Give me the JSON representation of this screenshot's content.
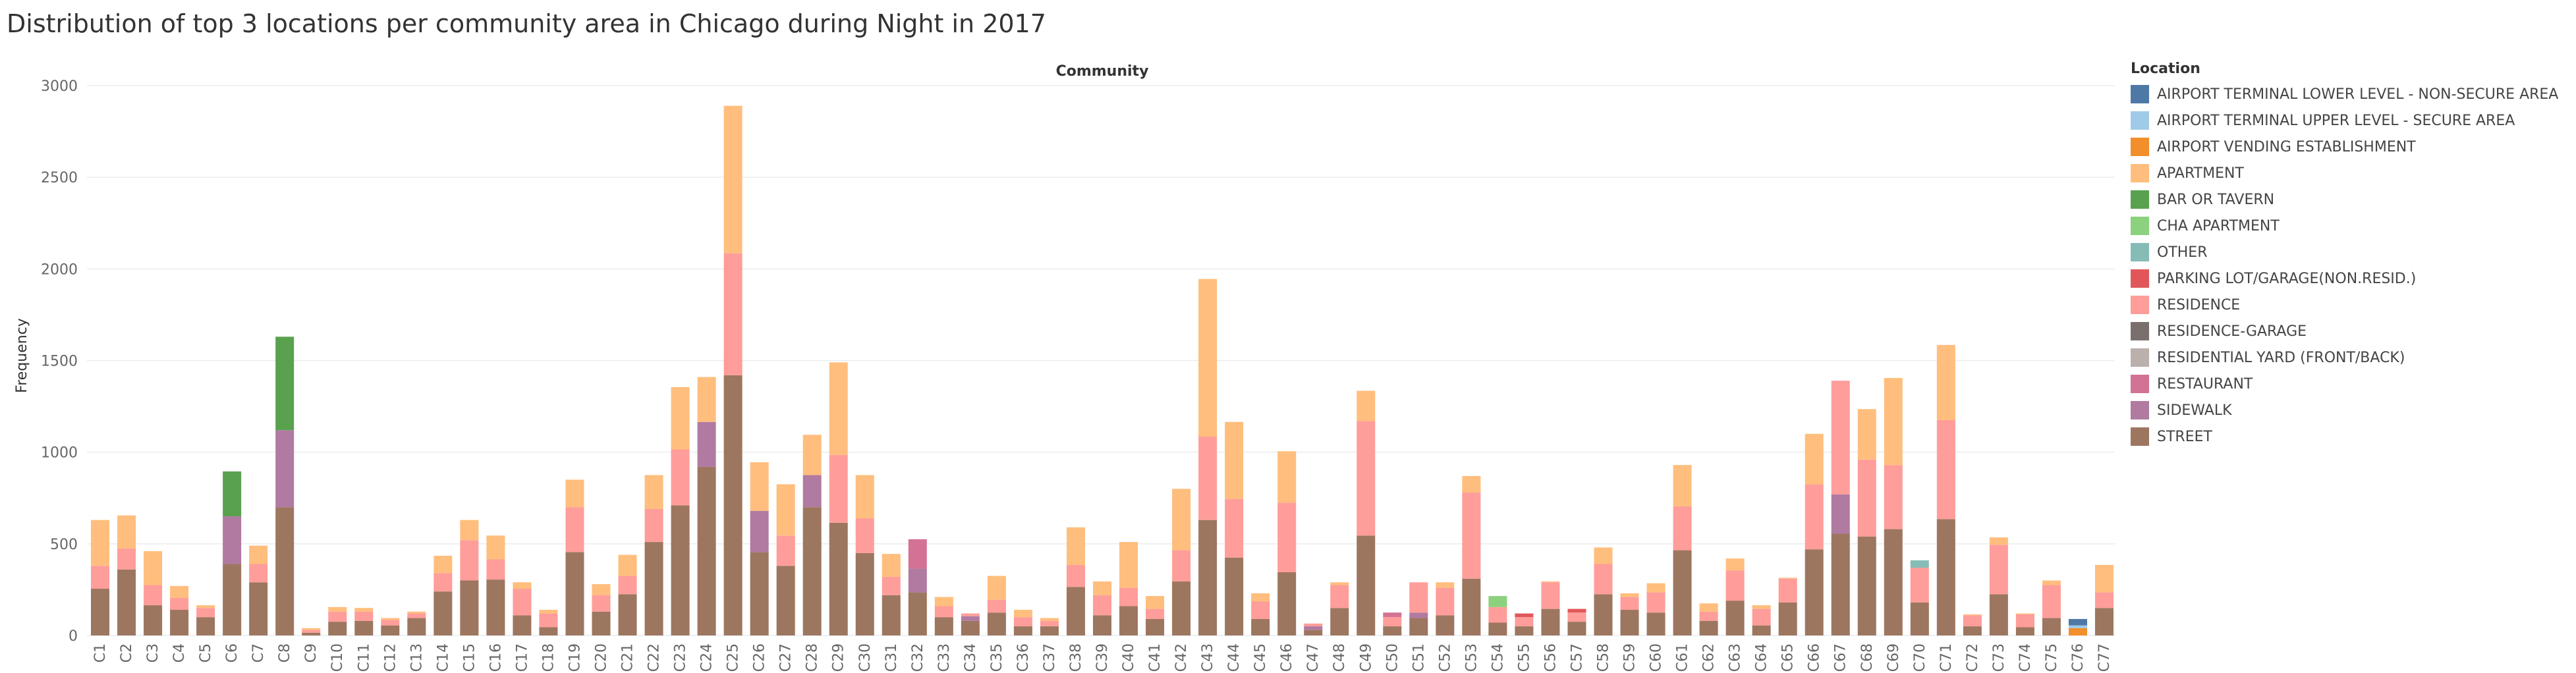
{
  "title": "Distribution of top 3 locations per community area in Chicago during Night in 2017",
  "chart_data": {
    "type": "bar",
    "stacked": true,
    "column_header": "Community",
    "xlabel": "",
    "ylabel": "Frequency",
    "ylim": [
      0,
      3000
    ],
    "yticks": [
      0,
      500,
      1000,
      1500,
      2000,
      2500,
      3000
    ],
    "grid": true,
    "legend_title": "Location",
    "legend_position": "right",
    "locations": [
      {
        "name": "AIRPORT TERMINAL LOWER LEVEL - NON-SECURE AREA",
        "color": "#4e79a7"
      },
      {
        "name": "AIRPORT TERMINAL UPPER LEVEL - SECURE AREA",
        "color": "#a0cbe8"
      },
      {
        "name": "AIRPORT VENDING ESTABLISHMENT",
        "color": "#f28e2b"
      },
      {
        "name": "APARTMENT",
        "color": "#ffbe7d"
      },
      {
        "name": "BAR OR TAVERN",
        "color": "#59a14f"
      },
      {
        "name": "CHA APARTMENT",
        "color": "#8cd17d"
      },
      {
        "name": "OTHER",
        "color": "#86bcb6"
      },
      {
        "name": "PARKING LOT/GARAGE(NON.RESID.)",
        "color": "#e15759"
      },
      {
        "name": "RESIDENCE",
        "color": "#ff9d9a"
      },
      {
        "name": "RESIDENCE-GARAGE",
        "color": "#79706e"
      },
      {
        "name": "RESIDENTIAL YARD (FRONT/BACK)",
        "color": "#bab0ac"
      },
      {
        "name": "RESTAURANT",
        "color": "#d37295"
      },
      {
        "name": "SIDEWALK",
        "color": "#b07aa1"
      },
      {
        "name": "STREET",
        "color": "#9d7660"
      }
    ],
    "categories": [
      "C1",
      "C2",
      "C3",
      "C4",
      "C5",
      "C6",
      "C7",
      "C8",
      "C9",
      "C10",
      "C11",
      "C12",
      "C13",
      "C14",
      "C15",
      "C16",
      "C17",
      "C18",
      "C19",
      "C20",
      "C21",
      "C22",
      "C23",
      "C24",
      "C25",
      "C26",
      "C27",
      "C28",
      "C29",
      "C30",
      "C31",
      "C32",
      "C33",
      "C34",
      "C35",
      "C36",
      "C37",
      "C38",
      "C39",
      "C40",
      "C41",
      "C42",
      "C43",
      "C44",
      "C45",
      "C46",
      "C47",
      "C48",
      "C49",
      "C50",
      "C51",
      "C52",
      "C53",
      "C54",
      "C55",
      "C56",
      "C57",
      "C58",
      "C59",
      "C60",
      "C61",
      "C62",
      "C63",
      "C64",
      "C65",
      "C66",
      "C67",
      "C68",
      "C69",
      "C70",
      "C71",
      "C72",
      "C73",
      "C74",
      "C75",
      "C76",
      "C77"
    ],
    "stacks": [
      [
        [
          "STREET",
          255
        ],
        [
          "RESIDENCE",
          125
        ],
        [
          "APARTMENT",
          250
        ]
      ],
      [
        [
          "STREET",
          360
        ],
        [
          "RESIDENCE",
          115
        ],
        [
          "APARTMENT",
          180
        ]
      ],
      [
        [
          "STREET",
          165
        ],
        [
          "RESIDENCE",
          110
        ],
        [
          "APARTMENT",
          185
        ]
      ],
      [
        [
          "STREET",
          140
        ],
        [
          "RESIDENCE",
          65
        ],
        [
          "APARTMENT",
          65
        ]
      ],
      [
        [
          "STREET",
          100
        ],
        [
          "RESIDENCE",
          50
        ],
        [
          "APARTMENT",
          15
        ]
      ],
      [
        [
          "STREET",
          390
        ],
        [
          "SIDEWALK",
          260
        ],
        [
          "BAR OR TAVERN",
          245
        ]
      ],
      [
        [
          "STREET",
          290
        ],
        [
          "RESIDENCE",
          100
        ],
        [
          "APARTMENT",
          100
        ]
      ],
      [
        [
          "STREET",
          700
        ],
        [
          "SIDEWALK",
          420
        ],
        [
          "BAR OR TAVERN",
          510
        ]
      ],
      [
        [
          "STREET",
          15
        ],
        [
          "RESIDENCE",
          15
        ],
        [
          "APARTMENT",
          10
        ]
      ],
      [
        [
          "STREET",
          75
        ],
        [
          "RESIDENCE",
          55
        ],
        [
          "APARTMENT",
          25
        ]
      ],
      [
        [
          "STREET",
          80
        ],
        [
          "RESIDENCE",
          50
        ],
        [
          "APARTMENT",
          20
        ]
      ],
      [
        [
          "STREET",
          55
        ],
        [
          "RESIDENCE",
          30
        ],
        [
          "APARTMENT",
          10
        ]
      ],
      [
        [
          "STREET",
          95
        ],
        [
          "RESIDENCE",
          25
        ],
        [
          "APARTMENT",
          10
        ]
      ],
      [
        [
          "STREET",
          240
        ],
        [
          "RESIDENCE",
          100
        ],
        [
          "APARTMENT",
          95
        ]
      ],
      [
        [
          "STREET",
          300
        ],
        [
          "RESIDENCE",
          220
        ],
        [
          "APARTMENT",
          110
        ]
      ],
      [
        [
          "STREET",
          305
        ],
        [
          "RESIDENCE",
          110
        ],
        [
          "APARTMENT",
          130
        ]
      ],
      [
        [
          "STREET",
          110
        ],
        [
          "RESIDENCE",
          145
        ],
        [
          "APARTMENT",
          35
        ]
      ],
      [
        [
          "STREET",
          45
        ],
        [
          "RESIDENCE",
          75
        ],
        [
          "APARTMENT",
          20
        ]
      ],
      [
        [
          "STREET",
          455
        ],
        [
          "RESIDENCE",
          245
        ],
        [
          "APARTMENT",
          150
        ]
      ],
      [
        [
          "STREET",
          130
        ],
        [
          "RESIDENCE",
          90
        ],
        [
          "APARTMENT",
          60
        ]
      ],
      [
        [
          "STREET",
          225
        ],
        [
          "RESIDENCE",
          100
        ],
        [
          "APARTMENT",
          115
        ]
      ],
      [
        [
          "STREET",
          510
        ],
        [
          "RESIDENCE",
          180
        ],
        [
          "APARTMENT",
          185
        ]
      ],
      [
        [
          "STREET",
          710
        ],
        [
          "RESIDENCE",
          305
        ],
        [
          "APARTMENT",
          340
        ]
      ],
      [
        [
          "STREET",
          920
        ],
        [
          "SIDEWALK",
          245
        ],
        [
          "APARTMENT",
          245
        ]
      ],
      [
        [
          "STREET",
          1420
        ],
        [
          "RESIDENCE",
          665
        ],
        [
          "APARTMENT",
          805
        ]
      ],
      [
        [
          "STREET",
          455
        ],
        [
          "SIDEWALK",
          225
        ],
        [
          "APARTMENT",
          265
        ]
      ],
      [
        [
          "STREET",
          380
        ],
        [
          "RESIDENCE",
          165
        ],
        [
          "APARTMENT",
          280
        ]
      ],
      [
        [
          "STREET",
          700
        ],
        [
          "SIDEWALK",
          175
        ],
        [
          "APARTMENT",
          220
        ]
      ],
      [
        [
          "STREET",
          615
        ],
        [
          "RESIDENCE",
          370
        ],
        [
          "APARTMENT",
          505
        ]
      ],
      [
        [
          "STREET",
          450
        ],
        [
          "RESIDENCE",
          190
        ],
        [
          "APARTMENT",
          235
        ]
      ],
      [
        [
          "STREET",
          220
        ],
        [
          "RESIDENCE",
          100
        ],
        [
          "APARTMENT",
          125
        ]
      ],
      [
        [
          "STREET",
          235
        ],
        [
          "SIDEWALK",
          130
        ],
        [
          "RESTAURANT",
          160
        ]
      ],
      [
        [
          "STREET",
          100
        ],
        [
          "RESIDENCE",
          60
        ],
        [
          "APARTMENT",
          50
        ]
      ],
      [
        [
          "STREET",
          80
        ],
        [
          "SIDEWALK",
          25
        ],
        [
          "RESIDENCE",
          15
        ]
      ],
      [
        [
          "STREET",
          125
        ],
        [
          "RESIDENCE",
          70
        ],
        [
          "APARTMENT",
          130
        ]
      ],
      [
        [
          "STREET",
          50
        ],
        [
          "RESIDENCE",
          50
        ],
        [
          "APARTMENT",
          40
        ]
      ],
      [
        [
          "STREET",
          50
        ],
        [
          "RESIDENCE",
          30
        ],
        [
          "APARTMENT",
          15
        ]
      ],
      [
        [
          "STREET",
          265
        ],
        [
          "RESIDENCE",
          120
        ],
        [
          "APARTMENT",
          205
        ]
      ],
      [
        [
          "STREET",
          110
        ],
        [
          "RESIDENCE",
          110
        ],
        [
          "APARTMENT",
          75
        ]
      ],
      [
        [
          "STREET",
          160
        ],
        [
          "RESIDENCE",
          100
        ],
        [
          "APARTMENT",
          250
        ]
      ],
      [
        [
          "STREET",
          90
        ],
        [
          "RESIDENCE",
          55
        ],
        [
          "APARTMENT",
          70
        ]
      ],
      [
        [
          "STREET",
          295
        ],
        [
          "RESIDENCE",
          170
        ],
        [
          "APARTMENT",
          335
        ]
      ],
      [
        [
          "STREET",
          630
        ],
        [
          "RESIDENCE",
          455
        ],
        [
          "APARTMENT",
          860
        ]
      ],
      [
        [
          "STREET",
          425
        ],
        [
          "RESIDENCE",
          320
        ],
        [
          "APARTMENT",
          420
        ]
      ],
      [
        [
          "STREET",
          90
        ],
        [
          "RESIDENCE",
          95
        ],
        [
          "APARTMENT",
          45
        ]
      ],
      [
        [
          "STREET",
          345
        ],
        [
          "RESIDENCE",
          380
        ],
        [
          "APARTMENT",
          280
        ]
      ],
      [
        [
          "STREET",
          30
        ],
        [
          "SIDEWALK",
          20
        ],
        [
          "RESIDENCE",
          15
        ]
      ],
      [
        [
          "STREET",
          150
        ],
        [
          "RESIDENCE",
          125
        ],
        [
          "APARTMENT",
          15
        ]
      ],
      [
        [
          "STREET",
          545
        ],
        [
          "RESIDENCE",
          625
        ],
        [
          "APARTMENT",
          165
        ]
      ],
      [
        [
          "STREET",
          50
        ],
        [
          "RESIDENCE",
          50
        ],
        [
          "RESTAURANT",
          25
        ]
      ],
      [
        [
          "STREET",
          95
        ],
        [
          "SIDEWALK",
          30
        ],
        [
          "RESIDENCE",
          165
        ]
      ],
      [
        [
          "STREET",
          110
        ],
        [
          "RESIDENCE",
          150
        ],
        [
          "APARTMENT",
          30
        ]
      ],
      [
        [
          "STREET",
          310
        ],
        [
          "RESIDENCE",
          470
        ],
        [
          "APARTMENT",
          90
        ]
      ],
      [
        [
          "STREET",
          70
        ],
        [
          "RESIDENCE",
          85
        ],
        [
          "CHA APARTMENT",
          60
        ]
      ],
      [
        [
          "STREET",
          50
        ],
        [
          "RESIDENCE",
          50
        ],
        [
          "PARKING LOT/GARAGE(NON.RESID.)",
          20
        ]
      ],
      [
        [
          "STREET",
          145
        ],
        [
          "RESIDENCE",
          145
        ],
        [
          "APARTMENT",
          5
        ]
      ],
      [
        [
          "STREET",
          75
        ],
        [
          "RESIDENCE",
          50
        ],
        [
          "PARKING LOT/GARAGE(NON.RESID.)",
          20
        ]
      ],
      [
        [
          "STREET",
          225
        ],
        [
          "RESIDENCE",
          165
        ],
        [
          "APARTMENT",
          90
        ]
      ],
      [
        [
          "STREET",
          140
        ],
        [
          "RESIDENCE",
          70
        ],
        [
          "APARTMENT",
          20
        ]
      ],
      [
        [
          "STREET",
          125
        ],
        [
          "RESIDENCE",
          110
        ],
        [
          "APARTMENT",
          50
        ]
      ],
      [
        [
          "STREET",
          465
        ],
        [
          "RESIDENCE",
          240
        ],
        [
          "APARTMENT",
          225
        ]
      ],
      [
        [
          "STREET",
          80
        ],
        [
          "RESIDENCE",
          50
        ],
        [
          "APARTMENT",
          45
        ]
      ],
      [
        [
          "STREET",
          190
        ],
        [
          "RESIDENCE",
          165
        ],
        [
          "APARTMENT",
          65
        ]
      ],
      [
        [
          "STREET",
          55
        ],
        [
          "RESIDENCE",
          90
        ],
        [
          "APARTMENT",
          20
        ]
      ],
      [
        [
          "STREET",
          180
        ],
        [
          "RESIDENCE",
          130
        ],
        [
          "APARTMENT",
          5
        ]
      ],
      [
        [
          "STREET",
          470
        ],
        [
          "RESIDENCE",
          355
        ],
        [
          "APARTMENT",
          275
        ]
      ],
      [
        [
          "STREET",
          555
        ],
        [
          "SIDEWALK",
          215
        ],
        [
          "RESIDENCE",
          620
        ]
      ],
      [
        [
          "STREET",
          540
        ],
        [
          "RESIDENCE",
          420
        ],
        [
          "APARTMENT",
          275
        ]
      ],
      [
        [
          "STREET",
          580
        ],
        [
          "RESIDENCE",
          350
        ],
        [
          "APARTMENT",
          475
        ]
      ],
      [
        [
          "STREET",
          180
        ],
        [
          "RESIDENCE",
          190
        ],
        [
          "OTHER",
          40
        ]
      ],
      [
        [
          "STREET",
          635
        ],
        [
          "RESIDENCE",
          540
        ],
        [
          "APARTMENT",
          410
        ]
      ],
      [
        [
          "STREET",
          50
        ],
        [
          "RESIDENCE",
          60
        ],
        [
          "APARTMENT",
          5
        ]
      ],
      [
        [
          "STREET",
          225
        ],
        [
          "RESIDENCE",
          270
        ],
        [
          "APARTMENT",
          40
        ]
      ],
      [
        [
          "STREET",
          45
        ],
        [
          "RESIDENCE",
          70
        ],
        [
          "APARTMENT",
          5
        ]
      ],
      [
        [
          "STREET",
          95
        ],
        [
          "RESIDENCE",
          180
        ],
        [
          "APARTMENT",
          25
        ]
      ],
      [
        [
          "AIRPORT VENDING ESTABLISHMENT",
          40
        ],
        [
          "AIRPORT TERMINAL UPPER LEVEL - SECURE AREA",
          15
        ],
        [
          "AIRPORT TERMINAL LOWER LEVEL - NON-SECURE AREA",
          35
        ]
      ],
      [
        [
          "STREET",
          150
        ],
        [
          "RESIDENCE",
          85
        ],
        [
          "APARTMENT",
          150
        ]
      ]
    ]
  }
}
